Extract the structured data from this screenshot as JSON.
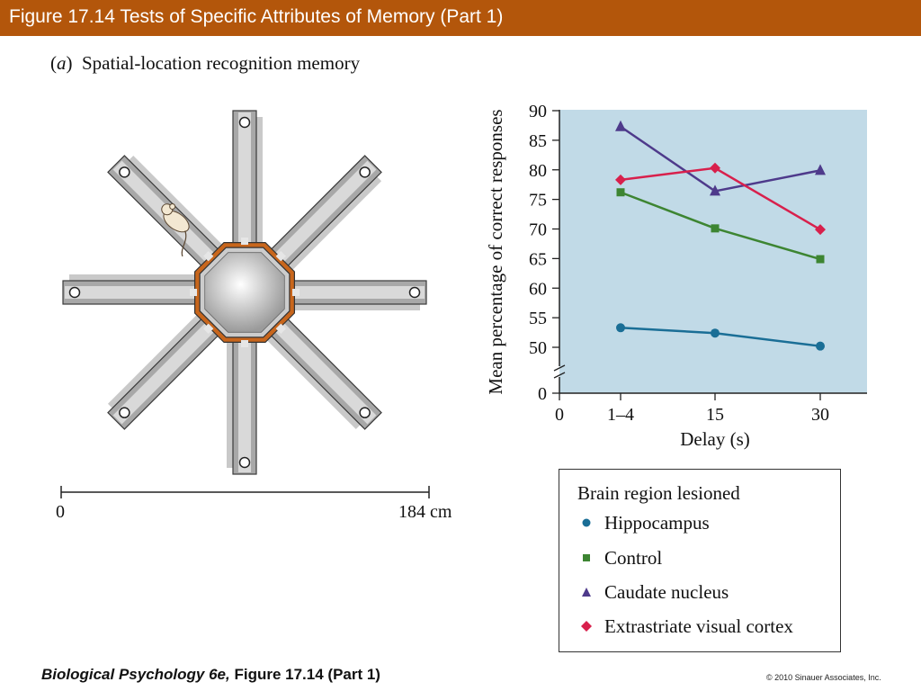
{
  "header": {
    "title": "Figure 17.14  Tests of Specific Attributes of Memory (Part 1)"
  },
  "panel": {
    "letter": "a",
    "title": "Spatial-location recognition memory"
  },
  "maze": {
    "scale_start": "0",
    "scale_end": "184 cm",
    "arm_count": 8,
    "hub_color": "#cccccc",
    "accent_color": "#c8661c"
  },
  "chart_data": {
    "type": "line",
    "xlabel": "Delay (s)",
    "ylabel": "Mean percentage of correct responses",
    "x_ticks": [
      "0",
      "1–4",
      "15",
      "30"
    ],
    "y_ticks": [
      0,
      50,
      55,
      60,
      65,
      70,
      75,
      80,
      85,
      90
    ],
    "ylim": [
      50,
      90
    ],
    "y_axis_break": true,
    "categories": [
      "1–4",
      "15",
      "30"
    ],
    "background_color": "#c1dae7",
    "legend_title": "Brain region lesioned",
    "legend_position": "below",
    "series": [
      {
        "name": "Hippocampus",
        "marker": "circle",
        "color": "#1a6e96",
        "values": [
          53.3,
          52.4,
          50.2
        ]
      },
      {
        "name": "Control",
        "marker": "square",
        "color": "#3d8532",
        "values": [
          76.2,
          70.1,
          64.9
        ]
      },
      {
        "name": "Caudate nucleus",
        "marker": "triangle",
        "color": "#4e3a8b",
        "values": [
          87.3,
          76.4,
          79.9
        ]
      },
      {
        "name": "Extrastriate visual cortex",
        "marker": "diamond",
        "color": "#d8204c",
        "values": [
          78.3,
          80.3,
          69.9
        ]
      }
    ]
  },
  "footer": {
    "book": "Biological Psychology 6e,",
    "figure": "Figure 17.14 (Part 1)",
    "copyright": "© 2010 Sinauer Associates, Inc."
  }
}
